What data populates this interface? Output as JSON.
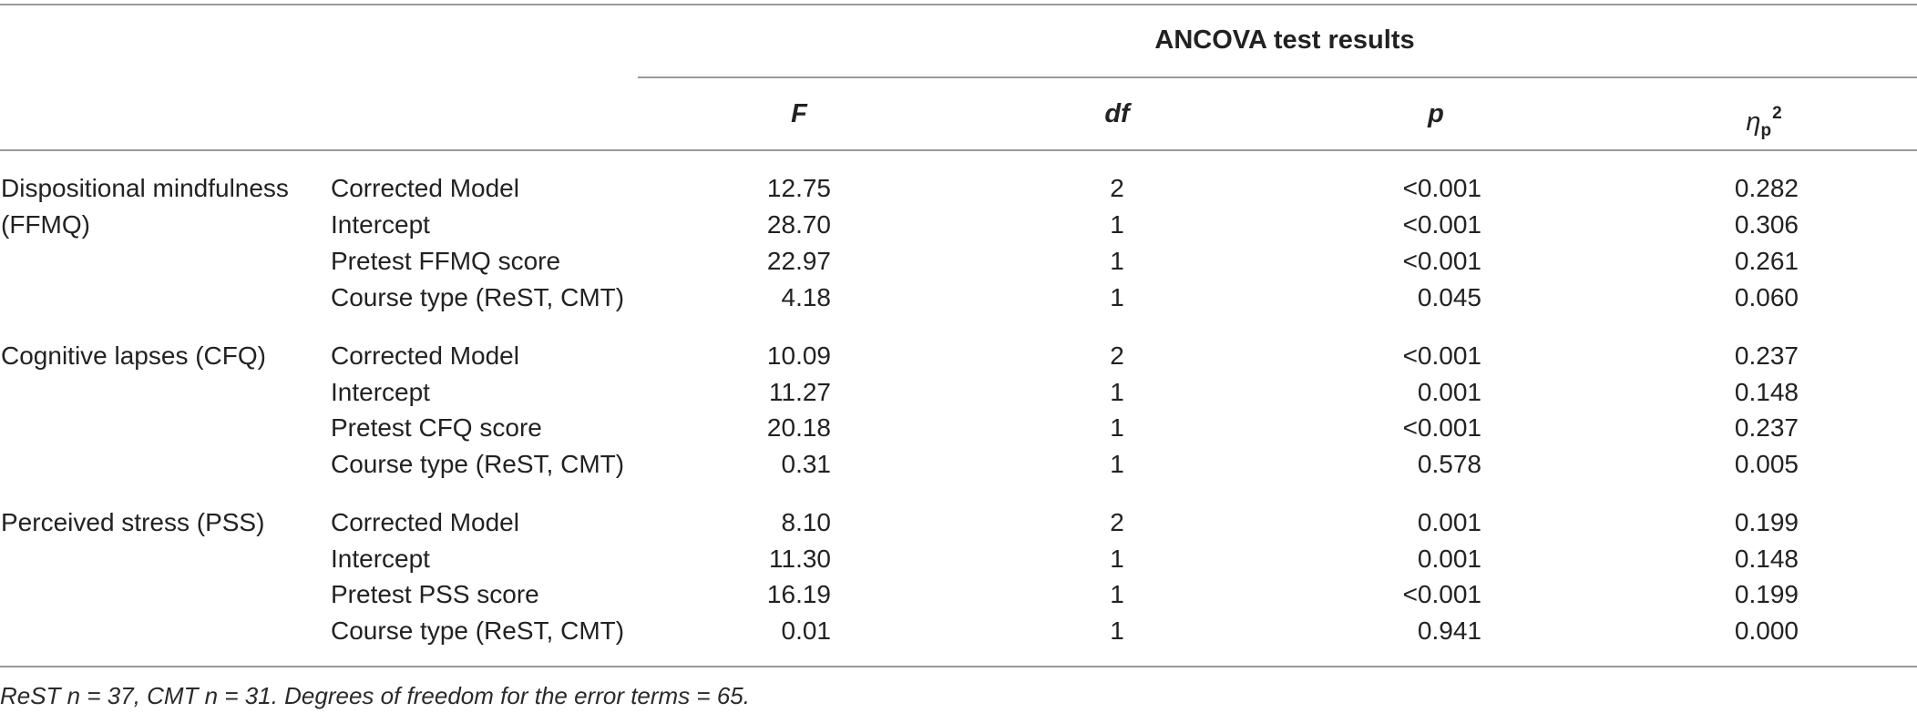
{
  "table": {
    "group_header": "ANCOVA test results",
    "columns": {
      "f": "F",
      "df": "df",
      "p": "p",
      "eta_symbol": "η",
      "eta_sub": "p",
      "eta_sup": "2"
    },
    "rows": [
      {
        "group": "Dispositional mindfulness",
        "term": "Corrected Model",
        "f": "12.75",
        "df": "2",
        "p": "<0.001",
        "eta": "0.282"
      },
      {
        "group": "(FFMQ)",
        "term": "Intercept",
        "f": "28.70",
        "df": "1",
        "p": "<0.001",
        "eta": "0.306"
      },
      {
        "group": "",
        "term": "Pretest FFMQ score",
        "f": "22.97",
        "df": "1",
        "p": "<0.001",
        "eta": "0.261"
      },
      {
        "group": "",
        "term": "Course type (ReST, CMT)",
        "f": "4.18",
        "df": "1",
        "p": "0.045",
        "eta": "0.060"
      },
      {
        "group": "Cognitive lapses (CFQ)",
        "term": "Corrected Model",
        "f": "10.09",
        "df": "2",
        "p": "<0.001",
        "eta": "0.237"
      },
      {
        "group": "",
        "term": "Intercept",
        "f": "11.27",
        "df": "1",
        "p": "0.001",
        "eta": "0.148"
      },
      {
        "group": "",
        "term": "Pretest CFQ score",
        "f": "20.18",
        "df": "1",
        "p": "<0.001",
        "eta": "0.237"
      },
      {
        "group": "",
        "term": "Course type (ReST, CMT)",
        "f": "0.31",
        "df": "1",
        "p": "0.578",
        "eta": "0.005"
      },
      {
        "group": "Perceived stress (PSS)",
        "term": "Corrected Model",
        "f": "8.10",
        "df": "2",
        "p": "0.001",
        "eta": "0.199"
      },
      {
        "group": "",
        "term": "Intercept",
        "f": "11.30",
        "df": "1",
        "p": "0.001",
        "eta": "0.148"
      },
      {
        "group": "",
        "term": "Pretest PSS score",
        "f": "16.19",
        "df": "1",
        "p": "<0.001",
        "eta": "0.199"
      },
      {
        "group": "",
        "term": "Course type (ReST, CMT)",
        "f": "0.01",
        "df": "1",
        "p": "0.941",
        "eta": "0.000"
      }
    ]
  },
  "footnote": "ReST n = 37, CMT n = 31. Degrees of freedom for the error terms = 65."
}
